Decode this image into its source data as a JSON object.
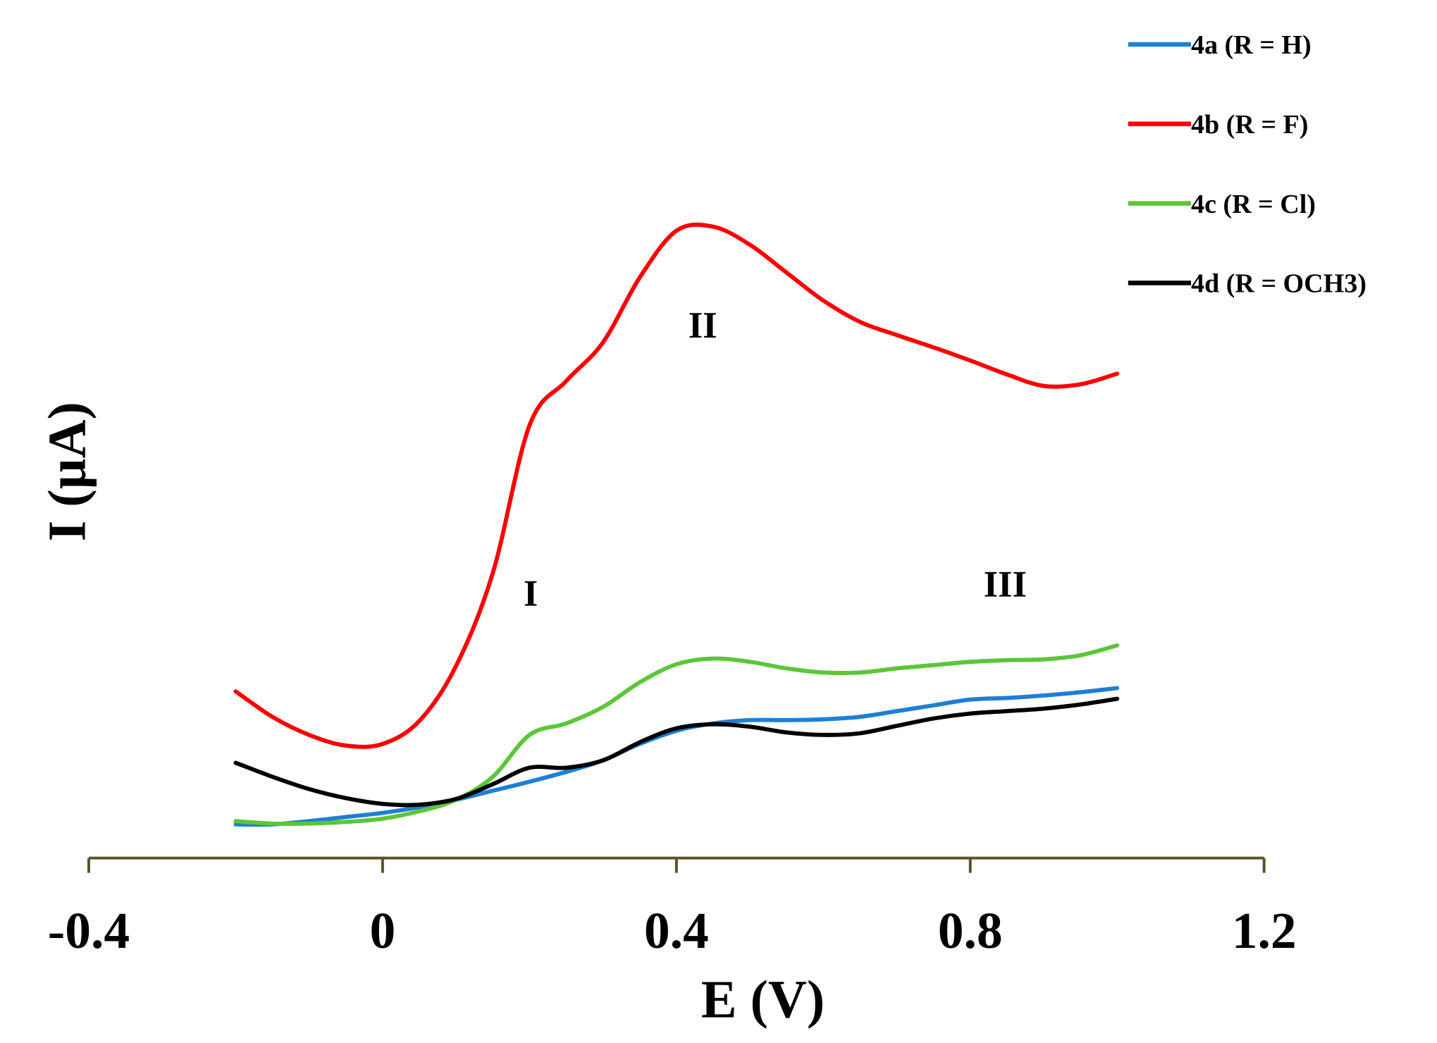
{
  "chart_data": {
    "type": "line",
    "x_label": "E (V)",
    "y_label": "I (µA)",
    "x": [
      -0.2,
      -0.15,
      -0.1,
      -0.05,
      0,
      0.05,
      0.1,
      0.15,
      0.2,
      0.25,
      0.3,
      0.35,
      0.4,
      0.45,
      0.5,
      0.55,
      0.6,
      0.65,
      0.7,
      0.75,
      0.8,
      0.85,
      0.9,
      0.95,
      1.0
    ],
    "series": [
      {
        "name": "4a (R = H)",
        "color": "#1f7fd4",
        "values": [
          4.1,
          4.1,
          4.5,
          5.0,
          5.5,
          6.2,
          7.1,
          8.2,
          9.3,
          10.5,
          11.9,
          13.9,
          15.5,
          16.4,
          16.8,
          16.8,
          16.9,
          17.2,
          17.9,
          18.6,
          19.3,
          19.5,
          19.8,
          20.2,
          20.7
        ]
      },
      {
        "name": "4b (R = F)",
        "color": "#ff0000",
        "values": [
          20.3,
          17.2,
          15.0,
          13.7,
          13.9,
          16.7,
          23.4,
          34.7,
          52.7,
          58.1,
          62.8,
          70.7,
          76.4,
          76.9,
          74.7,
          71.3,
          67.9,
          65.3,
          63.7,
          62.2,
          60.6,
          58.9,
          57.5,
          57.7,
          59.0
        ]
      },
      {
        "name": "4c (R = Cl)",
        "color": "#5cc63a",
        "values": [
          4.5,
          4.2,
          4.2,
          4.4,
          4.8,
          5.7,
          7.1,
          9.9,
          15.0,
          16.4,
          18.4,
          21.4,
          23.6,
          24.3,
          23.9,
          23.1,
          22.6,
          22.6,
          23.1,
          23.5,
          23.9,
          24.1,
          24.2,
          24.7,
          25.9
        ]
      },
      {
        "name": "4d (R = OCH3)",
        "color": "#000000",
        "values": [
          11.6,
          9.9,
          8.4,
          7.3,
          6.6,
          6.5,
          7.2,
          9.0,
          11.0,
          11.0,
          11.9,
          14.1,
          15.8,
          16.3,
          16.0,
          15.3,
          15.0,
          15.2,
          16.1,
          17.0,
          17.6,
          17.9,
          18.2,
          18.7,
          19.4
        ]
      }
    ],
    "annotations": [
      "I",
      "II",
      "III"
    ],
    "xlim": [
      -0.4,
      1.2
    ],
    "xticks": [
      {
        "value": -0.4,
        "label": "-0.4"
      },
      0,
      0.4,
      0.8,
      1.2
    ],
    "ylim": [
      0,
      100
    ],
    "legend": "top-right"
  }
}
